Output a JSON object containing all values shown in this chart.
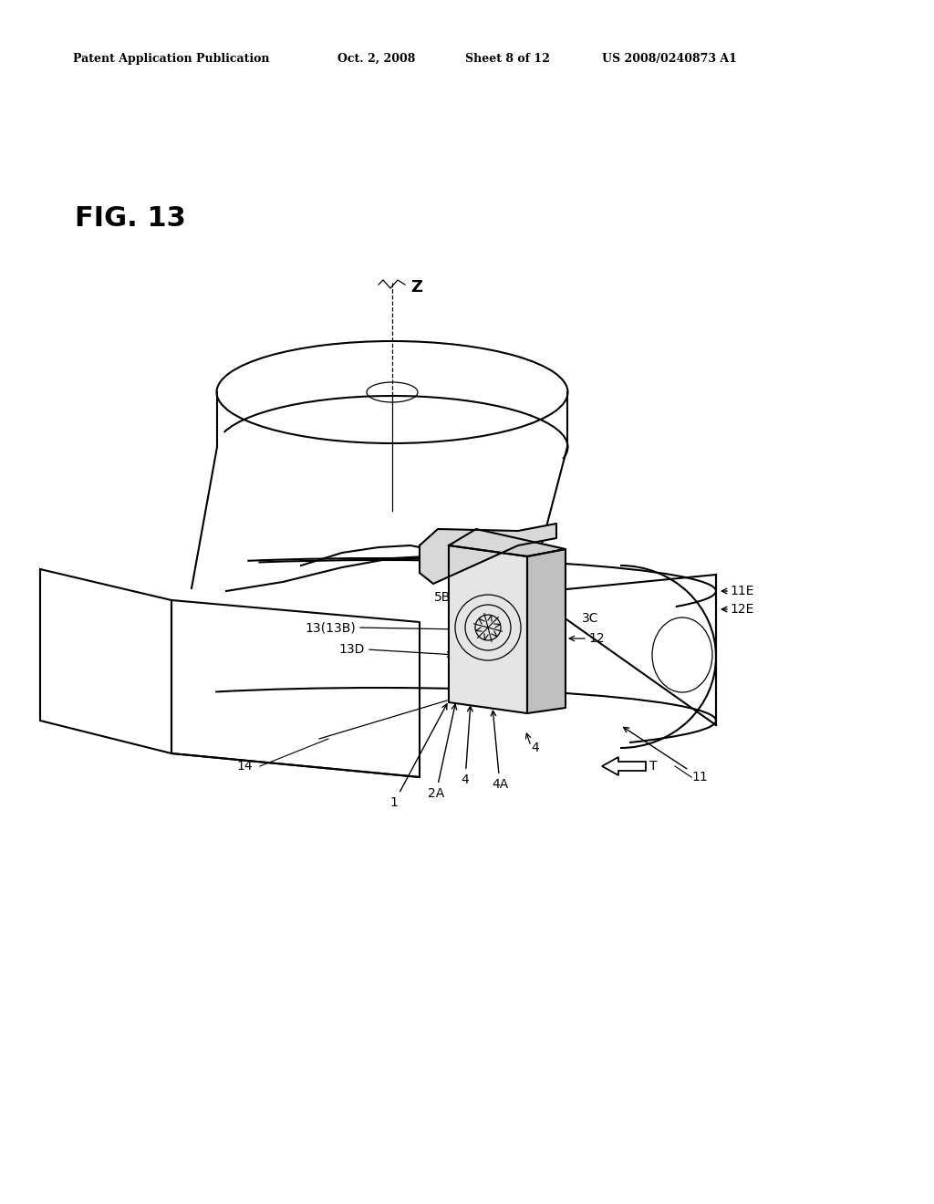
{
  "bg_color": "#ffffff",
  "line_color": "#000000",
  "header_text": "Patent Application Publication",
  "header_date": "Oct. 2, 2008",
  "header_sheet": "Sheet 8 of 12",
  "header_patent": "US 2008/0240873 A1",
  "fig_label": "FIG. 13",
  "lw_main": 1.5,
  "lw_thin": 0.9,
  "ann_fs": 10
}
